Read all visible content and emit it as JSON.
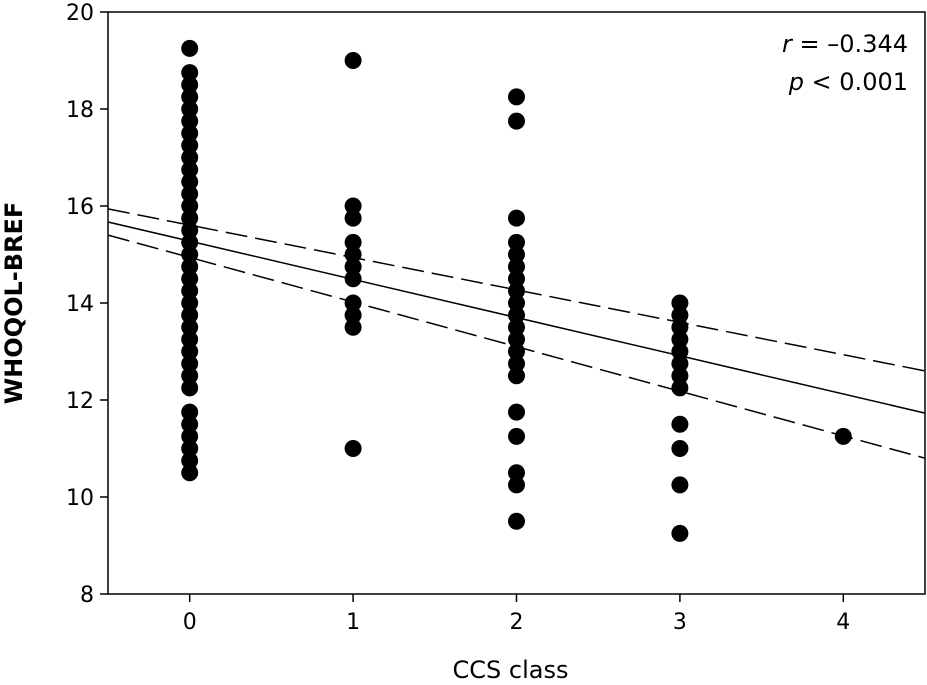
{
  "chart_data": {
    "type": "scatter",
    "title": "",
    "xlabel": "CCS class",
    "ylabel": "WHOQOL-BREF",
    "xlim": [
      -0.5,
      4.5
    ],
    "ylim": [
      8,
      20
    ],
    "xticks": [
      0,
      1,
      2,
      3,
      4
    ],
    "yticks": [
      8,
      10,
      12,
      14,
      16,
      18,
      20
    ],
    "grid": false,
    "annotations": [
      {
        "italic": "r",
        "text": " = –0.344"
      },
      {
        "italic": "p",
        "text": " < 0.001"
      }
    ],
    "points": [
      {
        "x": 0,
        "ys": [
          19.25,
          18.75,
          18.5,
          18.25,
          18,
          17.75,
          17.5,
          17.25,
          17,
          16.75,
          16.5,
          16.25,
          16,
          15.75,
          15.5,
          15.25,
          15,
          14.75,
          14.5,
          14.25,
          14,
          13.75,
          13.5,
          13.25,
          13,
          12.75,
          12.5,
          12.25,
          11.75,
          11.5,
          11.25,
          11,
          10.75,
          10.5
        ]
      },
      {
        "x": 1,
        "ys": [
          19,
          16,
          15.75,
          15.25,
          15,
          14.75,
          14.5,
          14,
          13.75,
          13.5,
          11
        ]
      },
      {
        "x": 2,
        "ys": [
          18.25,
          17.75,
          15.75,
          15.25,
          15,
          14.75,
          14.5,
          14.25,
          14,
          13.75,
          13.5,
          13.25,
          13,
          12.75,
          12.5,
          11.75,
          11.25,
          10.5,
          10.25,
          9.5
        ]
      },
      {
        "x": 3,
        "ys": [
          14,
          13.75,
          13.5,
          13.25,
          13,
          12.75,
          12.5,
          12.25,
          11.5,
          11,
          10.25,
          9.25
        ]
      },
      {
        "x": 4,
        "ys": [
          11.25
        ]
      }
    ],
    "regression": {
      "x": [
        -0.5,
        4.5
      ],
      "y": [
        15.67,
        11.73
      ]
    },
    "ci_upper": {
      "x": [
        -0.5,
        4.5
      ],
      "y": [
        15.94,
        12.6
      ]
    },
    "ci_lower": {
      "x": [
        -0.5,
        4.5
      ],
      "y": [
        15.4,
        10.8
      ]
    }
  }
}
